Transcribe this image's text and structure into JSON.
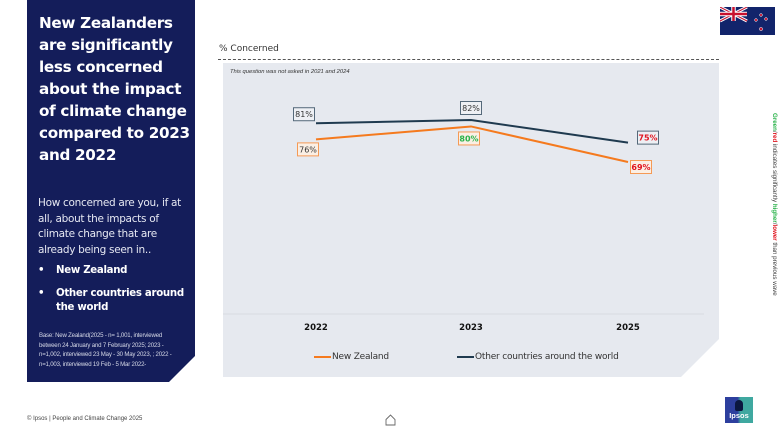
{
  "panel": {
    "title": "New Zealanders are significantly less concerned about the impact of climate change compared to 2023 and 2022",
    "question": "How concerned are you, if at all, about the impacts of climate change that are already being seen in..",
    "bullets": [
      "New Zealand",
      "Other countries around the world"
    ],
    "bullet_glyph": "•",
    "base_note": "Base: New Zealand(2025 - n= 1,001, interviewed between 24 January and 7 February 2025; 2023 - n=1,002, interviewed 23 May - 30 May 2023, ; 2022 - n=1,003, interviewed 19 Feb - 5 Mar 2022-"
  },
  "chart_heading": "% Concerned",
  "chart_note": "This question was not asked in 2021 and 2024",
  "side_note": {
    "green": "Green",
    "slash1": "/",
    "red": "red",
    "mid": " indicates significantly ",
    "higher": "higher",
    "slash2": "/",
    "lower": "lower",
    "tail": " than previous wave"
  },
  "colors": {
    "nz": "#f57a1e",
    "world": "#1f3a4f",
    "sig_higher": "#2bb34b",
    "sig_lower": "#e0141e",
    "neutral_label": "#333333",
    "panel_bg": "#141d5a",
    "chart_bg": "#e6e9ef"
  },
  "chart_data": {
    "type": "line",
    "title": "% Concerned",
    "xlabel": "",
    "ylabel": "% Concerned",
    "categories": [
      "2022",
      "2023",
      "2025"
    ],
    "ylim": [
      40,
      90
    ],
    "grid": false,
    "legend_position": "bottom",
    "series": [
      {
        "name": "New Zealand",
        "values": [
          76,
          80,
          69
        ],
        "labels": [
          "76%",
          "80%",
          "69%"
        ],
        "significance": [
          "none",
          "higher",
          "lower"
        ]
      },
      {
        "name": "Other countries around the world",
        "values": [
          81,
          82,
          75
        ],
        "labels": [
          "81%",
          "82%",
          "75%"
        ],
        "significance": [
          "none",
          "none",
          "lower"
        ]
      }
    ]
  },
  "legend": [
    "New Zealand",
    "Other countries around the world"
  ],
  "footer": "© Ipsos | People and Climate Change 2025",
  "logo_text": "Ipsos",
  "flag_name": "New Zealand flag"
}
